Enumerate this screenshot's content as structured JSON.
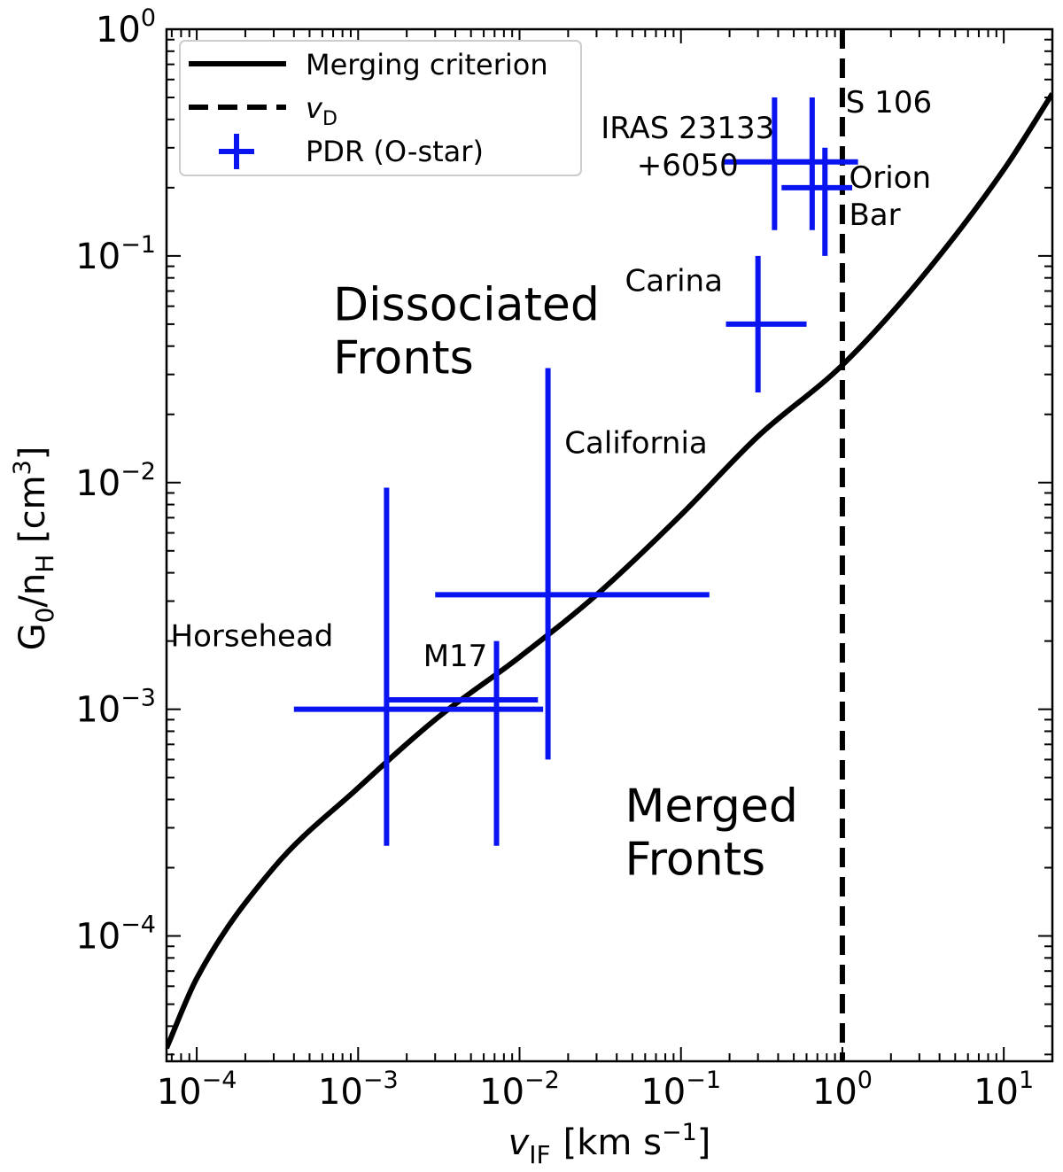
{
  "chart_data": {
    "type": "scatter",
    "xscale": "log",
    "yscale": "log",
    "xlim": [
      6.5e-05,
      20
    ],
    "ylim": [
      2.8e-05,
      1
    ],
    "xlabel": "v_IF [km s^-1]",
    "ylabel": "G_0/n_H [cm^3]",
    "xlabel_main": "v",
    "xlabel_sub": "IF",
    "xlabel_unit": "[km s",
    "xlabel_unit_exp": "−1",
    "xlabel_close": "]",
    "ylabel_main": "G",
    "ylabel_sub1": "0",
    "ylabel_mid": "/n",
    "ylabel_sub2": "H",
    "ylabel_unit": " [cm",
    "ylabel_unit_exp": "3",
    "ylabel_close": "]",
    "x_ticks": [
      {
        "value": 0.0001,
        "base": "10",
        "exp": "−4"
      },
      {
        "value": 0.001,
        "base": "10",
        "exp": "−3"
      },
      {
        "value": 0.01,
        "base": "10",
        "exp": "−2"
      },
      {
        "value": 0.1,
        "base": "10",
        "exp": "−1"
      },
      {
        "value": 1,
        "base": "10",
        "exp": "0"
      },
      {
        "value": 10,
        "base": "10",
        "exp": "1"
      }
    ],
    "y_ticks": [
      {
        "value": 0.0001,
        "base": "10",
        "exp": "−4"
      },
      {
        "value": 0.001,
        "base": "10",
        "exp": "−3"
      },
      {
        "value": 0.01,
        "base": "10",
        "exp": "−2"
      },
      {
        "value": 0.1,
        "base": "10",
        "exp": "−1"
      },
      {
        "value": 1,
        "base": "10",
        "exp": "0"
      }
    ],
    "legend": {
      "placement": "top-left",
      "entries": [
        {
          "label": "Merging criterion",
          "style": "solid"
        },
        {
          "label_main": "v",
          "label_sub": "D",
          "style": "dashed"
        },
        {
          "label": "PDR (O-star)",
          "style": "errorbar"
        }
      ]
    },
    "series": [
      {
        "name": "Merging criterion",
        "type": "line",
        "color": "#000000",
        "x": [
          6.5e-05,
          0.0001,
          0.0003,
          0.001,
          0.003,
          0.01,
          0.03,
          0.1,
          0.3,
          1,
          3,
          10,
          20
        ],
        "y": [
          3.2e-05,
          6.5e-05,
          0.0002,
          0.00045,
          0.0009,
          0.0017,
          0.0032,
          0.0072,
          0.016,
          0.033,
          0.078,
          0.24,
          0.52
        ]
      },
      {
        "name": "PDR (O-star)",
        "type": "errorbar",
        "color": "#0a14f0",
        "points": [
          {
            "name": "Horsehead",
            "x": 0.0015,
            "xmin": 0.0004,
            "xmax": 0.014,
            "y": 0.001,
            "ymin": 0.00025,
            "ymax": 0.0095
          },
          {
            "name": "M17",
            "x": 0.0072,
            "xmin": 0.0015,
            "xmax": 0.013,
            "y": 0.0011,
            "ymin": 0.00025,
            "ymax": 0.002
          },
          {
            "name": "California",
            "x": 0.015,
            "xmin": 0.003,
            "xmax": 0.15,
            "y": 0.0032,
            "ymin": 0.0006,
            "ymax": 0.032
          },
          {
            "name": "Carina",
            "x": 0.3,
            "xmin": 0.19,
            "xmax": 0.6,
            "y": 0.05,
            "ymin": 0.025,
            "ymax": 0.1
          },
          {
            "name": "IRAS 23133+6050",
            "x": 0.38,
            "xmin": 0.18,
            "xmax": 0.64,
            "y": 0.26,
            "ymin": 0.13,
            "ymax": 0.5
          },
          {
            "name": "S 106",
            "x": 0.65,
            "xmin": 0.38,
            "xmax": 1.25,
            "y": 0.26,
            "ymin": 0.13,
            "ymax": 0.5
          },
          {
            "name": "Orion Bar",
            "x": 0.78,
            "xmin": 0.42,
            "xmax": 1.15,
            "y": 0.2,
            "ymin": 0.1,
            "ymax": 0.3
          }
        ]
      },
      {
        "name": "v_D",
        "type": "vline",
        "color": "#000000",
        "x": 1
      }
    ],
    "annotations": [
      {
        "id": "iras",
        "lines": [
          "IRAS 23133",
          "+6050"
        ],
        "x": 0.11,
        "y": 0.33,
        "anchor": "middle"
      },
      {
        "id": "s106",
        "lines": [
          "S 106"
        ],
        "x": 1.05,
        "y": 0.43,
        "anchor": "start"
      },
      {
        "id": "orion",
        "lines": [
          "Orion",
          "Bar"
        ],
        "x": 1.1,
        "y": 0.2,
        "anchor": "start"
      },
      {
        "id": "carina",
        "lines": [
          "Carina"
        ],
        "x": 0.045,
        "y": 0.07,
        "anchor": "start"
      },
      {
        "id": "california",
        "lines": [
          "California"
        ],
        "x": 0.019,
        "y": 0.0135,
        "anchor": "start"
      },
      {
        "id": "horsehead",
        "lines": [
          "Horsehead"
        ],
        "x": 0.00022,
        "y": 0.0019,
        "anchor": "middle"
      },
      {
        "id": "m17",
        "lines": [
          "M17"
        ],
        "x": 0.004,
        "y": 0.00155,
        "anchor": "middle"
      }
    ],
    "regions": [
      {
        "id": "dissociated",
        "lines": [
          "Dissociated",
          "Fronts"
        ],
        "x": 0.0007,
        "y": 0.052
      },
      {
        "id": "merged",
        "lines": [
          "Merged",
          "Fronts"
        ],
        "x": 0.045,
        "y": 0.00032
      }
    ],
    "grid": false
  }
}
